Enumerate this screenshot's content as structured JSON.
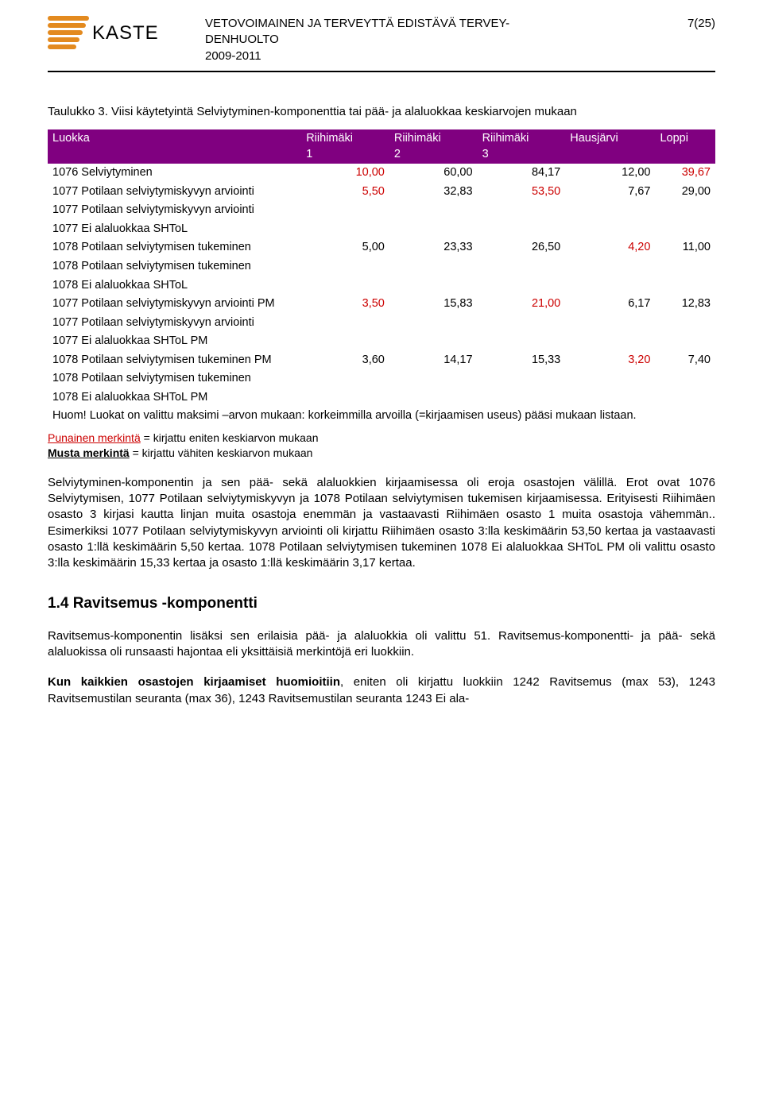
{
  "header": {
    "logo_text": "KASTE",
    "title_line1": "VETOVOIMAINEN JA TERVEYTTÄ EDISTÄVÄ TERVEY-",
    "title_line2": "DENHUOLTO",
    "years": "2009-2011",
    "page_num": "7(25)",
    "logo_color": "#e38a1f"
  },
  "table_caption": "Taulukko 3. Viisi käytetyintä Selviytyminen-komponenttia tai pää- ja alaluokkaa keskiarvojen mukaan",
  "table": {
    "header_bg": "#800080",
    "header_fg": "#ffffff",
    "highlight_color": "#cc0000",
    "columns": [
      {
        "label": "Luokka",
        "sub": ""
      },
      {
        "label": "Riihimäki",
        "sub": "1"
      },
      {
        "label": "Riihimäki",
        "sub": "2"
      },
      {
        "label": "Riihimäki",
        "sub": "3"
      },
      {
        "label": "Hausjärvi",
        "sub": ""
      },
      {
        "label": "Loppi",
        "sub": ""
      }
    ],
    "rows": [
      {
        "label": "1076 Selviytyminen",
        "v": [
          "10,00",
          "60,00",
          "84,17",
          "12,00",
          "39,67"
        ],
        "hl": [
          0,
          4
        ]
      },
      {
        "label": "1077 Potilaan selviytymiskyvyn arviointi",
        "v": [
          "5,50",
          "32,83",
          "53,50",
          "7,67",
          "29,00"
        ],
        "hl": [
          0,
          2
        ]
      },
      {
        "label": "1077 Potilaan selviytymiskyvyn arviointi",
        "v": [
          "",
          "",
          "",
          "",
          ""
        ],
        "hl": []
      },
      {
        "label": "1077 Ei alaluokkaa SHToL",
        "v": [
          "",
          "",
          "",
          "",
          ""
        ],
        "hl": []
      },
      {
        "label": "1078 Potilaan selviytymisen tukeminen",
        "v": [
          "5,00",
          "23,33",
          "26,50",
          "4,20",
          "11,00"
        ],
        "hl": [
          3
        ]
      },
      {
        "label": "1078 Potilaan selviytymisen tukeminen",
        "v": [
          "",
          "",
          "",
          "",
          ""
        ],
        "hl": []
      },
      {
        "label": "1078 Ei alaluokkaa SHToL",
        "v": [
          "",
          "",
          "",
          "",
          ""
        ],
        "hl": []
      },
      {
        "label": "1077 Potilaan selviytymiskyvyn arviointi PM",
        "v": [
          "3,50",
          "15,83",
          "21,00",
          "6,17",
          "12,83"
        ],
        "hl": [
          0,
          2
        ]
      },
      {
        "label": "1077 Potilaan selviytymiskyvyn arviointi",
        "v": [
          "",
          "",
          "",
          "",
          ""
        ],
        "hl": []
      },
      {
        "label": "1077 Ei alaluokkaa SHToL PM",
        "v": [
          "",
          "",
          "",
          "",
          ""
        ],
        "hl": []
      },
      {
        "label": "1078 Potilaan selviytymisen tukeminen PM",
        "v": [
          "3,60",
          "14,17",
          "15,33",
          "3,20",
          "7,40"
        ],
        "hl": [
          3
        ]
      },
      {
        "label": "1078 Potilaan selviytymisen tukeminen",
        "v": [
          "",
          "",
          "",
          "",
          ""
        ],
        "hl": []
      },
      {
        "label": "1078 Ei alaluokkaa SHToL PM",
        "v": [
          "",
          "",
          "",
          "",
          ""
        ],
        "hl": []
      }
    ],
    "footnote": "Huom! Luokat on valittu maksimi –arvon mukaan: korkeimmilla arvoilla (=kirjaamisen useus) pääsi mukaan listaan."
  },
  "legend": {
    "red_label": "Punainen merkintä",
    "red_text": " = kirjattu eniten keskiarvon mukaan",
    "bold_label": "Musta merkintä",
    "bold_text": " = kirjattu vähiten keskiarvon mukaan"
  },
  "para1": "Selviytyminen-komponentin ja sen pää- sekä alaluokkien kirjaamisessa oli eroja osastojen välillä. Erot ovat 1076 Selviytymisen, 1077 Potilaan selviytymiskyvyn ja 1078 Potilaan selviytymisen tukemisen kirjaamisessa. Erityisesti Riihimäen osasto 3 kirjasi kautta linjan muita osastoja enemmän ja vastaavasti Riihimäen osasto 1 muita osastoja vähemmän.. Esimerkiksi 1077 Potilaan selviytymiskyvyn arviointi oli kirjattu Riihimäen osasto 3:lla keskimäärin 53,50 kertaa ja vastaavasti osasto 1:llä keskimäärin 5,50 kertaa. 1078 Potilaan selviytymisen tukeminen 1078 Ei alaluokkaa SHToL PM oli valittu osasto 3:lla keskimäärin 15,33 kertaa ja osasto 1:llä keskimäärin 3,17 kertaa.",
  "section_heading": "1.4 Ravitsemus -komponentti",
  "para2": "Ravitsemus-komponentin lisäksi sen erilaisia pää- ja alaluokkia oli valittu 51. Ravitsemus-komponentti- ja pää- sekä alaluokissa oli runsaasti hajontaa eli yksittäisiä merkintöjä eri luokkiin.",
  "para3_bold": "Kun kaikkien osastojen kirjaamiset huomioitiin",
  "para3_rest": ", eniten oli kirjattu luokkiin 1242 Ravitsemus (max 53), 1243 Ravitsemustilan seuranta (max 36), 1243 Ravitsemustilan seuranta 1243 Ei ala-"
}
